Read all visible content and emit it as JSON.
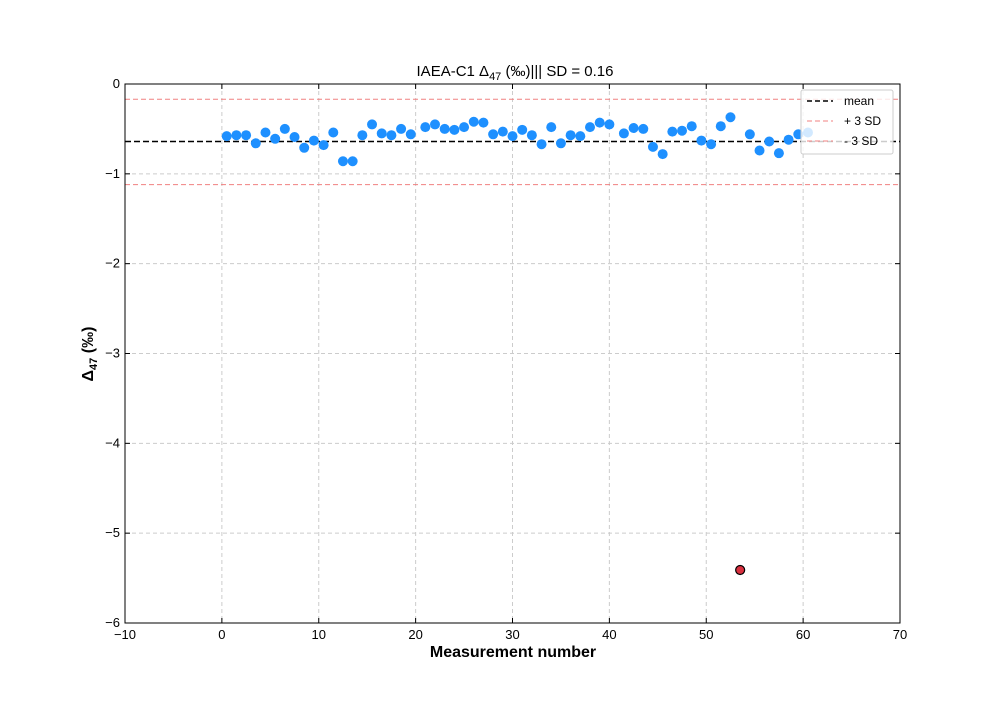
{
  "chart_data": {
    "type": "scatter",
    "title": {
      "prefix": "IAEA-C1 Δ",
      "subscript": "47",
      "suffix": " (‰)||| SD =  0.16"
    },
    "xlabel": "Measurement number",
    "ylabel": {
      "prefix": "Δ",
      "subscript": "47",
      "suffix": " (‰)"
    },
    "xlim": [
      -10,
      70
    ],
    "ylim": [
      -6,
      0
    ],
    "xticks": [
      -10,
      0,
      10,
      20,
      30,
      40,
      50,
      60,
      70
    ],
    "xtick_labels": [
      "−10",
      "0",
      "10",
      "20",
      "30",
      "40",
      "50",
      "60",
      "70"
    ],
    "yticks": [
      -6,
      -5,
      -4,
      -3,
      -2,
      -1,
      0
    ],
    "ytick_labels": [
      "−6",
      "−5",
      "−4",
      "−3",
      "−2",
      "−1",
      "0"
    ],
    "grid": true,
    "legend_position": "top-right",
    "colors": {
      "points": "#1e90ff",
      "outlier_fill": "#d9303f",
      "outlier_edge": "#000000",
      "mean_line": "#000000",
      "sd_lines": "#f08080",
      "grid": "#cccccc"
    },
    "reference_lines": [
      {
        "name": "mean",
        "y": -0.64,
        "style": "dashed",
        "color": "#000000"
      },
      {
        "name": "+ 3 SD",
        "y": -0.17,
        "style": "dashed",
        "color": "#f08080"
      },
      {
        "name": "- 3 SD",
        "y": -1.12,
        "style": "dashed",
        "color": "#f08080"
      }
    ],
    "series": [
      {
        "x": [
          0.5,
          1.5,
          2.5,
          3.5,
          4.5,
          5.5,
          6.5,
          7.5,
          8.5,
          9.5,
          10.5,
          11.5,
          12.5,
          13.5,
          14.5,
          15.5,
          16.5,
          17.5,
          18.5,
          19.5,
          21,
          22,
          23,
          24,
          25,
          26,
          27,
          28,
          29,
          30,
          31,
          32,
          33,
          34,
          35,
          36,
          37,
          38,
          39,
          40,
          41.5,
          42.5,
          43.5,
          44.5,
          45.5,
          46.5,
          47.5,
          48.5,
          49.5,
          50.5,
          51.5,
          52.5,
          54.5,
          55.5,
          56.5,
          57.5,
          58.5,
          59.5,
          60.5
        ],
        "y": [
          -0.58,
          -0.57,
          -0.57,
          -0.66,
          -0.54,
          -0.61,
          -0.5,
          -0.59,
          -0.71,
          -0.63,
          -0.68,
          -0.54,
          -0.86,
          -0.86,
          -0.57,
          -0.45,
          -0.55,
          -0.57,
          -0.5,
          -0.56,
          -0.48,
          -0.45,
          -0.5,
          -0.51,
          -0.48,
          -0.42,
          -0.43,
          -0.56,
          -0.53,
          -0.58,
          -0.51,
          -0.57,
          -0.67,
          -0.48,
          -0.66,
          -0.57,
          -0.58,
          -0.48,
          -0.43,
          -0.45,
          -0.55,
          -0.49,
          -0.5,
          -0.7,
          -0.78,
          -0.53,
          -0.52,
          -0.47,
          -0.63,
          -0.67,
          -0.47,
          -0.37,
          -0.56,
          -0.74,
          -0.64,
          -0.77,
          -0.62,
          -0.56,
          -0.54
        ]
      },
      {
        "x": [
          53.5
        ],
        "y": [
          -5.41
        ]
      }
    ]
  }
}
